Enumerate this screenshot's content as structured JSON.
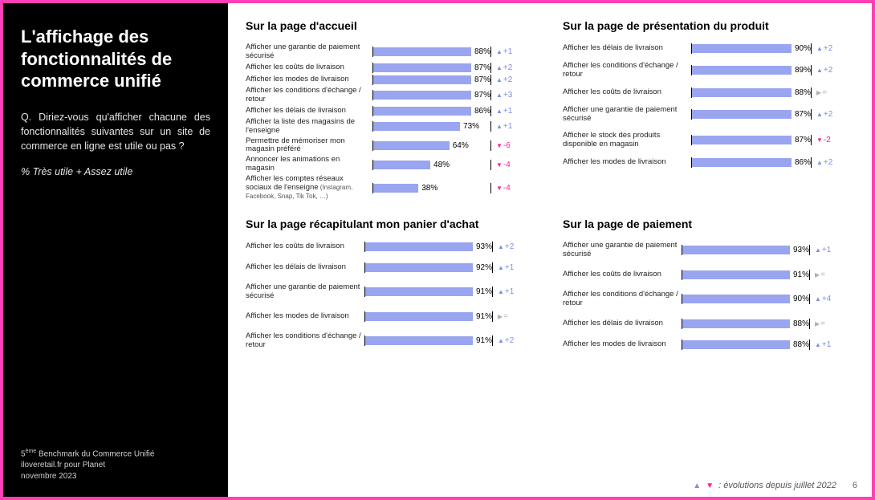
{
  "colors": {
    "frame_border": "#ff3fb4",
    "sidebar_bg": "#000000",
    "sidebar_text": "#ffffff",
    "bar_fill": "#9aa5ef",
    "delta_up": "#7d8de8",
    "delta_down": "#ff1fa0",
    "delta_flat": "#b0b0b0"
  },
  "sidebar": {
    "title": "L'affichage des fonctionnalités de commerce unifié",
    "question": "Q. Diriez-vous qu'afficher chacune des fonctionnalités suivantes sur un site de commerce en ligne est utile ou pas ?",
    "subnote": "% Très utile + Assez utile",
    "footer_line1_pre": "5",
    "footer_line1_sup": "ème",
    "footer_line1_post": " Benchmark du Commerce Unifié",
    "footer_line2": "iloveretail.fr pour Planet",
    "footer_line3": "novembre 2023"
  },
  "legend": {
    "text": ": évolutions depuis juillet 2022",
    "page": "6"
  },
  "layout": {
    "label_width_std": 148,
    "track_width_std": 160,
    "label_width_tl": 158,
    "track_width_tl": 148,
    "row_gap_tight": 2,
    "row_gap_loose": 10
  },
  "charts": [
    {
      "id": "homepage",
      "title": "Sur la page d'accueil",
      "row_gap": 2,
      "label_width": 158,
      "track_width": 148,
      "items": [
        {
          "label": "Afficher une garantie de paiement sécurisé",
          "value": 88,
          "delta": 1,
          "dir": "up"
        },
        {
          "label": "Afficher les coûts de livraison",
          "value": 87,
          "delta": 2,
          "dir": "up"
        },
        {
          "label": "Afficher les modes de livraison",
          "value": 87,
          "delta": 2,
          "dir": "up"
        },
        {
          "label": "Afficher les conditions d'échange / retour",
          "value": 87,
          "delta": 3,
          "dir": "up"
        },
        {
          "label": "Afficher les délais de livraison",
          "value": 86,
          "delta": 1,
          "dir": "up"
        },
        {
          "label": "Afficher la liste des magasins de l'enseigne",
          "value": 73,
          "delta": 1,
          "dir": "up"
        },
        {
          "label": "Permettre de mémoriser mon magasin préféré",
          "value": 64,
          "delta": -6,
          "dir": "down"
        },
        {
          "label": "Annoncer les animations en magasin",
          "value": 48,
          "delta": -4,
          "dir": "down"
        },
        {
          "label": "Afficher les comptes réseaux sociaux de l'enseigne",
          "label_tiny": "(Instagram, Facebook, Snap, Tik Tok, …)",
          "value": 38,
          "delta": -4,
          "dir": "down"
        }
      ]
    },
    {
      "id": "product",
      "title": "Sur la page de présentation du produit",
      "row_gap": 10,
      "label_width": 160,
      "track_width": 150,
      "items": [
        {
          "label": "Afficher les délais de livraison",
          "value": 90,
          "delta": 2,
          "dir": "up"
        },
        {
          "label": "Afficher les conditions d'échange / retour",
          "value": 89,
          "delta": 2,
          "dir": "up"
        },
        {
          "label": "Afficher les coûts de livraison",
          "value": 88,
          "delta": 0,
          "dir": "flat"
        },
        {
          "label": "Afficher une garantie de paiement sécurisé",
          "value": 87,
          "delta": 2,
          "dir": "up"
        },
        {
          "label": "Afficher le stock des produits disponible en magasin",
          "value": 87,
          "delta": -2,
          "dir": "down"
        },
        {
          "label": "Afficher les modes de livraison",
          "value": 86,
          "delta": 2,
          "dir": "up"
        }
      ]
    },
    {
      "id": "cart",
      "title": "Sur la page récapitulant mon panier d'achat",
      "row_gap": 13,
      "label_width": 148,
      "track_width": 160,
      "items": [
        {
          "label": "Afficher les coûts de livraison",
          "value": 93,
          "delta": 2,
          "dir": "up"
        },
        {
          "label": "Afficher les délais de livraison",
          "value": 92,
          "delta": 1,
          "dir": "up"
        },
        {
          "label": "Afficher une garantie de paiement sécurisé",
          "value": 91,
          "delta": 1,
          "dir": "up"
        },
        {
          "label": "Afficher les modes de livraison",
          "value": 91,
          "delta": 0,
          "dir": "flat"
        },
        {
          "label": "Afficher les conditions d'échange / retour",
          "value": 91,
          "delta": 2,
          "dir": "up"
        }
      ]
    },
    {
      "id": "payment",
      "title": "Sur la page de paiement",
      "row_gap": 13,
      "label_width": 148,
      "track_width": 160,
      "items": [
        {
          "label": "Afficher une garantie de paiement sécurisé",
          "value": 93,
          "delta": 1,
          "dir": "up"
        },
        {
          "label": "Afficher les coûts de livraison",
          "value": 91,
          "delta": 0,
          "dir": "flat"
        },
        {
          "label": "Afficher les conditions d'échange / retour",
          "value": 90,
          "delta": 4,
          "dir": "up"
        },
        {
          "label": "Afficher les délais de livraison",
          "value": 88,
          "delta": 0,
          "dir": "flat"
        },
        {
          "label": "Afficher les modes de livraison",
          "value": 88,
          "delta": 1,
          "dir": "up"
        }
      ]
    }
  ]
}
